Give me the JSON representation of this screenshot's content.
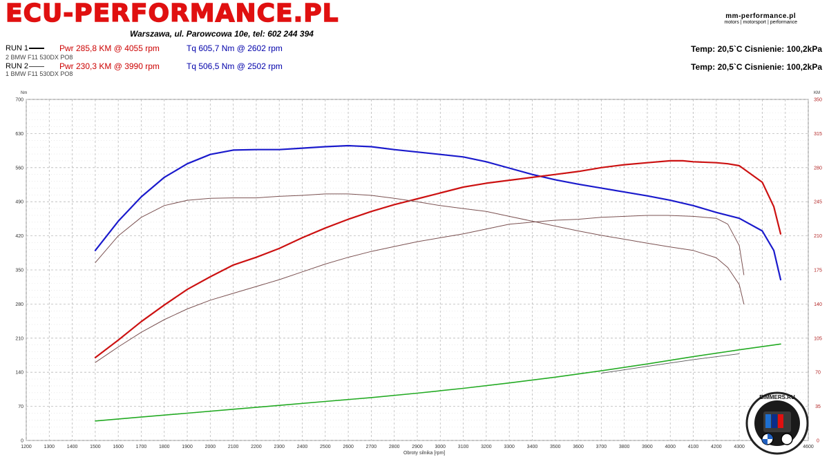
{
  "header": {
    "brand": "ECU-PERFORMANCE.PL",
    "address": "Warszawa, ul. Parowcowa 10e, tel: 602 244 394",
    "logo_line1": "mm-performance.pl",
    "logo_line2": "motors | motorsport | performance"
  },
  "runs": [
    {
      "label": "RUN 1",
      "car": "2 BMW F11 530DX PO8",
      "power": "Pwr  285,8 KM @ 4055 rpm",
      "torque": "Tq 605,7 Nm @ 2602 rpm",
      "env": "Temp: 20,5`C   Cisnienie: 100,2kPa"
    },
    {
      "label": "RUN 2",
      "car": "1 BMW F11 530DX PO8",
      "power": "Pwr  230,3 KM @ 3990 rpm",
      "torque": "Tq 506,5 Nm @ 2502 rpm",
      "env": "Temp: 20,5`C   Cisnienie: 100,2kPa"
    }
  ],
  "badge_text": "BIMMERS.RU",
  "colors": {
    "brand": "#e01010",
    "power_run1": "#cc1111",
    "torque_run1": "#1a1acc",
    "loss_run1": "#22aa22",
    "run2": "#7a5050",
    "grid": "#b8b8b8"
  },
  "chart_data": {
    "type": "line",
    "xlabel": "Obroty silnika [rpm]",
    "ylabel_left": "Nm",
    "ylabel_right": "KM",
    "xlim": [
      1200,
      4600
    ],
    "ylim_left": [
      0,
      700
    ],
    "ylim_right": [
      0,
      350
    ],
    "x_ticks": [
      1200,
      1300,
      1400,
      1500,
      1600,
      1700,
      1800,
      1900,
      2000,
      2100,
      2200,
      2300,
      2400,
      2500,
      2600,
      2700,
      2800,
      2900,
      3000,
      3100,
      3200,
      3300,
      3400,
      3500,
      3600,
      3700,
      3800,
      3900,
      4000,
      4100,
      4200,
      4300,
      4400,
      4500,
      4600
    ],
    "y_ticks_left": [
      0,
      70,
      140,
      210,
      280,
      350,
      420,
      490,
      560,
      630,
      700
    ],
    "y_ticks_right": [
      0,
      35,
      70,
      105,
      140,
      175,
      210,
      245,
      280,
      315,
      350
    ],
    "grid": true,
    "series": [
      {
        "axis": "left",
        "color": "#1a1acc",
        "width": 2.2,
        "x": [
          1500,
          1600,
          1700,
          1800,
          1900,
          2000,
          2100,
          2200,
          2300,
          2400,
          2500,
          2600,
          2700,
          2800,
          2900,
          3000,
          3100,
          3200,
          3300,
          3400,
          3500,
          3600,
          3700,
          3800,
          3900,
          4000,
          4100,
          4200,
          4300,
          4400,
          4450,
          4480
        ],
        "y": [
          390,
          450,
          500,
          540,
          568,
          587,
          596,
          597,
          597,
          600,
          603,
          605,
          603,
          597,
          592,
          587,
          582,
          572,
          559,
          546,
          535,
          526,
          518,
          510,
          502,
          493,
          482,
          468,
          456,
          430,
          390,
          330
        ]
      },
      {
        "axis": "right",
        "color": "#cc1111",
        "width": 2.2,
        "x": [
          1500,
          1600,
          1700,
          1800,
          1900,
          2000,
          2100,
          2200,
          2300,
          2400,
          2500,
          2600,
          2700,
          2800,
          2900,
          3000,
          3100,
          3200,
          3300,
          3400,
          3500,
          3600,
          3700,
          3800,
          3900,
          4000,
          4055,
          4100,
          4200,
          4250,
          4300,
          4400,
          4450,
          4480
        ],
        "y": [
          85,
          103,
          122,
          139,
          155,
          168,
          180,
          188,
          197,
          208,
          218,
          227,
          235,
          242,
          248,
          254,
          260,
          264,
          267,
          270,
          273,
          276,
          280,
          283,
          285,
          287,
          287,
          286,
          285,
          284,
          282,
          265,
          240,
          212
        ]
      },
      {
        "axis": "left",
        "color": "#7a5050",
        "width": 1.0,
        "x": [
          1500,
          1600,
          1700,
          1800,
          1900,
          2000,
          2100,
          2200,
          2300,
          2400,
          2500,
          2600,
          2700,
          2800,
          2900,
          3000,
          3100,
          3200,
          3300,
          3400,
          3500,
          3600,
          3700,
          3800,
          3900,
          4000,
          4100,
          4200,
          4250,
          4300,
          4320
        ],
        "y": [
          365,
          420,
          458,
          482,
          493,
          497,
          498,
          498,
          501,
          503,
          506,
          506,
          503,
          497,
          490,
          482,
          476,
          470,
          460,
          450,
          440,
          430,
          421,
          413,
          405,
          397,
          390,
          375,
          355,
          320,
          280
        ]
      },
      {
        "axis": "right",
        "color": "#7a5050",
        "width": 1.0,
        "x": [
          1500,
          1600,
          1700,
          1800,
          1900,
          2000,
          2100,
          2200,
          2300,
          2400,
          2500,
          2600,
          2700,
          2800,
          2900,
          3000,
          3100,
          3200,
          3300,
          3400,
          3500,
          3600,
          3700,
          3800,
          3900,
          3990,
          4100,
          4200,
          4250,
          4300,
          4320
        ],
        "y": [
          80,
          96,
          111,
          124,
          135,
          144,
          151,
          158,
          165,
          173,
          181,
          188,
          194,
          199,
          204,
          208,
          212,
          217,
          222,
          224,
          226,
          227,
          229,
          230,
          231,
          231,
          230,
          228,
          222,
          200,
          170
        ]
      },
      {
        "axis": "left",
        "color": "#22aa22",
        "width": 1.6,
        "x": [
          1500,
          1700,
          1900,
          2100,
          2300,
          2500,
          2700,
          2900,
          3100,
          3300,
          3500,
          3700,
          3900,
          4100,
          4300,
          4480
        ],
        "y": [
          40,
          48,
          56,
          64,
          72,
          80,
          88,
          97,
          107,
          118,
          130,
          143,
          157,
          172,
          186,
          198
        ]
      },
      {
        "axis": "left",
        "color": "#555555",
        "width": 0.9,
        "x": [
          3700,
          3900,
          4100,
          4300
        ],
        "y": [
          138,
          152,
          166,
          178
        ]
      }
    ]
  }
}
